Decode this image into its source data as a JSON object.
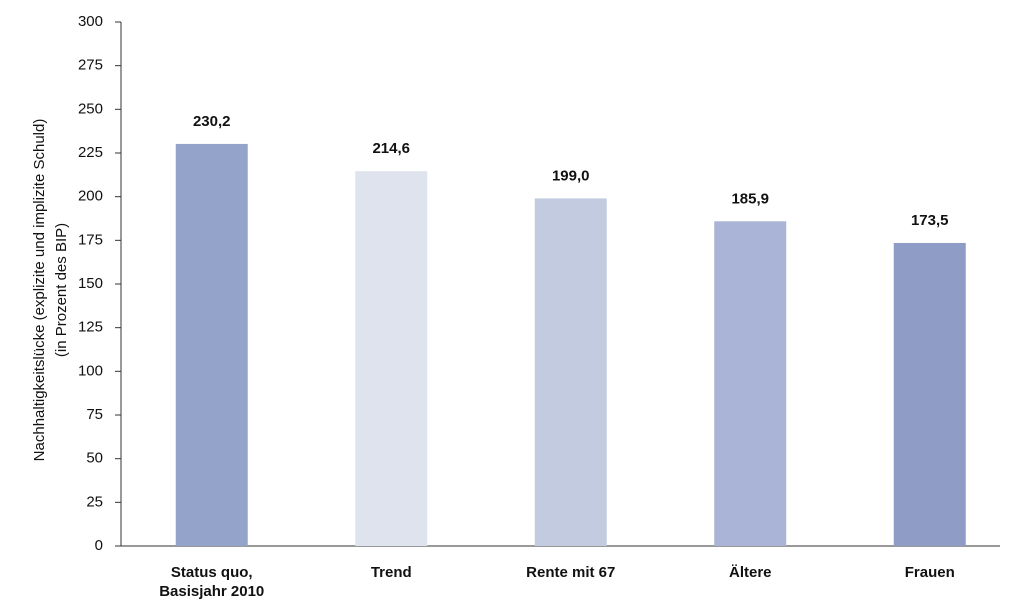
{
  "chart_data": {
    "type": "bar",
    "ylabel": [
      "Nachhaltigkeitslücke (explizite und implizite Schuld)",
      "(in Prozent des BIP)"
    ],
    "categories": [
      "Status quo, Basisjahr 2010",
      "Trend",
      "Rente mit 67",
      "Ältere",
      "Frauen"
    ],
    "values": [
      230.2,
      214.6,
      199.0,
      185.9,
      173.5
    ],
    "value_labels": [
      "230,2",
      "214,6",
      "199,0",
      "185,9",
      "173,5"
    ],
    "colors": [
      "#94a3c9",
      "#dfe3ee",
      "#c3cbe0",
      "#a9b4d6",
      "#8e9cc6"
    ],
    "ylim": [
      0,
      300
    ],
    "yticks": [
      0,
      25,
      50,
      75,
      100,
      125,
      150,
      175,
      200,
      225,
      250,
      275,
      300
    ]
  }
}
